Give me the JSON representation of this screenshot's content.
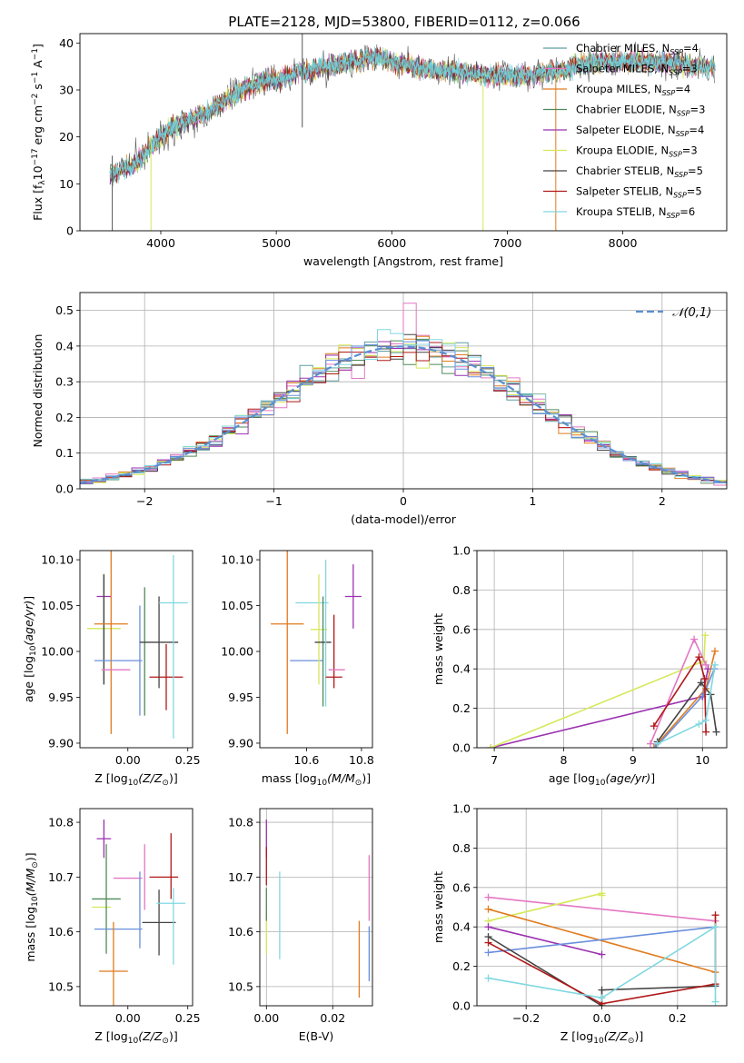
{
  "figure": {
    "title": "PLATE=2128, MJD=53800, FIBERID=0112, z=0.066"
  },
  "colors": {
    "Chabrier MILES": "#5f9ea0",
    "Salpeter MILES": "#e377c2",
    "Kroupa MILES": "#e07b1f",
    "Chabrier ELODIE": "#4e8a57",
    "Salpeter ELODIE": "#9b30b0",
    "Kroupa ELODIE": "#d6e85a",
    "Chabrier STELIB": "#444444",
    "Salpeter STELIB": "#b01818",
    "Kroupa STELIB": "#80d8e0",
    "spectrum_a": "#6cd0d8",
    "spectrum_b": "#555555",
    "gauss": "#5b8fd0",
    "blue": "#6a8fdc"
  },
  "chart_data": [
    {
      "id": "spectrum",
      "type": "line",
      "title": "PLATE=2128, MJD=53800, FIBERID=0112, z=0.066",
      "xlabel": "wavelength [Angstrom, rest frame]",
      "ylabel": "Flux [f_λ 10^-17 erg cm^-2 s^-1 A^-1]",
      "xlim": [
        3300,
        8900
      ],
      "ylim": [
        0,
        42
      ],
      "xticks": [
        4000,
        5000,
        6000,
        7000,
        8000
      ],
      "yticks": [
        0,
        10,
        20,
        30,
        40
      ],
      "grid": false,
      "legend_position": "top-right",
      "series": [
        {
          "name": "Chabrier MILES, N_SSP=4",
          "color": "#5f9ea0"
        },
        {
          "name": "Salpeter MILES, N_SSP=3",
          "color": "#e377c2"
        },
        {
          "name": "Kroupa MILES, N_SSP=4",
          "color": "#e07b1f"
        },
        {
          "name": "Chabrier ELODIE, N_SSP=3",
          "color": "#4e8a57"
        },
        {
          "name": "Salpeter ELODIE, N_SSP=4",
          "color": "#9b30b0"
        },
        {
          "name": "Kroupa ELODIE, N_SSP=3",
          "color": "#d6e85a"
        },
        {
          "name": "Chabrier STELIB, N_SSP=5",
          "color": "#444444"
        },
        {
          "name": "Salpeter STELIB, N_SSP=5",
          "color": "#b01818"
        },
        {
          "name": "Kroupa STELIB, N_SSP=6",
          "color": "#80d8e0"
        }
      ],
      "continuum_x": [
        3560,
        3650,
        3750,
        3850,
        3920,
        4000,
        4100,
        4200,
        4300,
        4400,
        4500,
        4600,
        4700,
        4800,
        4900,
        5000,
        5100,
        5200,
        5300,
        5400,
        5500,
        5600,
        5700,
        5800,
        5900,
        6000,
        6200,
        6400,
        6600,
        6800,
        7000,
        7200,
        7400,
        7600,
        7800,
        8000,
        8200,
        8400,
        8600,
        8800
      ],
      "continuum_y": [
        12,
        13,
        14,
        16,
        18,
        20,
        22,
        23,
        24,
        25,
        27,
        28,
        30,
        31,
        32,
        32,
        33,
        34,
        34,
        35,
        35,
        36,
        36,
        37,
        37,
        36,
        35,
        34,
        34,
        33,
        33,
        33,
        34,
        35,
        36,
        36,
        36,
        36,
        35,
        35
      ]
    },
    {
      "id": "residuals",
      "type": "histogram",
      "xlabel": "(data-model)/error",
      "ylabel": "Normed distribution",
      "xlim": [
        -2.5,
        2.5
      ],
      "ylim": [
        0,
        0.55
      ],
      "xticks": [
        -2,
        -1,
        0,
        1,
        2
      ],
      "yticks": [
        0.0,
        0.1,
        0.2,
        0.3,
        0.4,
        0.5
      ],
      "grid": true,
      "legend_position": "top-right",
      "reference_curve": "𝒩(0,1)",
      "bin_width": 0.1,
      "series_colors": [
        "#5f9ea0",
        "#e377c2",
        "#e07b1f",
        "#4e8a57",
        "#9b30b0",
        "#d6e85a",
        "#444444",
        "#b01818",
        "#80d8e0",
        "#6a8fdc"
      ]
    },
    {
      "id": "age-vs-Z",
      "type": "scatter",
      "xlabel": "Z [log10(Z/Z⊙)]",
      "ylabel": "age [log10(age/yr)]",
      "xlim": [
        -0.2,
        0.27
      ],
      "ylim": [
        9.895,
        10.11
      ],
      "xticks": [
        0.0,
        0.25
      ],
      "yticks": [
        9.9,
        9.95,
        10.0,
        10.05,
        10.1
      ],
      "grid": false,
      "points": [
        {
          "x": -0.1,
          "y": 10.06,
          "xerr": 0.03,
          "yerr": 0.0,
          "color": "#9b30b0"
        },
        {
          "x": -0.1,
          "y": 10.025,
          "xerr": 0.07,
          "yerr": 0.06,
          "color": "#d6e85a"
        },
        {
          "x": -0.1,
          "y": 10.024,
          "xerr": 0.0,
          "yerr": 0.06,
          "color": "#4e8a57"
        },
        {
          "x": -0.1,
          "y": 10.024,
          "xerr": 0.0,
          "yerr": 0.06,
          "color": "#444444"
        },
        {
          "x": -0.07,
          "y": 10.03,
          "xerr": 0.07,
          "yerr": 0.12,
          "color": "#e07b1f"
        },
        {
          "x": -0.05,
          "y": 9.98,
          "xerr": 0.06,
          "yerr": 0.0,
          "color": "#e377c2"
        },
        {
          "x": -0.04,
          "y": 9.99,
          "xerr": 0.1,
          "yerr": 0.0,
          "color": "#6a8fdc"
        },
        {
          "x": 0.05,
          "y": 9.99,
          "xerr": 0.0,
          "yerr": 0.06,
          "color": "#6a8fdc"
        },
        {
          "x": 0.07,
          "y": 10.0,
          "xerr": 0.0,
          "yerr": 0.07,
          "color": "#4e8a57"
        },
        {
          "x": 0.13,
          "y": 10.01,
          "xerr": 0.08,
          "yerr": 0.05,
          "color": "#444444"
        },
        {
          "x": 0.16,
          "y": 9.972,
          "xerr": 0.07,
          "yerr": 0.036,
          "color": "#b01818"
        },
        {
          "x": 0.19,
          "y": 10.053,
          "xerr": 0.06,
          "yerr": 0.0,
          "color": "#80d8e0"
        },
        {
          "x": 0.19,
          "y": 10.005,
          "xerr": 0.0,
          "yerr": 0.1,
          "color": "#80d8e0"
        }
      ]
    },
    {
      "id": "age-vs-mass",
      "type": "scatter",
      "xlabel": "mass [log10(M/M⊙)]",
      "ylabel": "",
      "xlim": [
        10.43,
        10.84
      ],
      "ylim": [
        9.895,
        10.11
      ],
      "xticks": [
        10.6,
        10.8
      ],
      "yticks": [
        9.9,
        9.95,
        10.0,
        10.05,
        10.1
      ],
      "grid": false,
      "points": [
        {
          "x": 10.53,
          "y": 10.03,
          "xerr": 0.06,
          "yerr": 0.12,
          "color": "#e07b1f"
        },
        {
          "x": 10.6,
          "y": 9.99,
          "xerr": 0.06,
          "yerr": 0.0,
          "color": "#6a8fdc"
        },
        {
          "x": 10.62,
          "y": 10.053,
          "xerr": 0.06,
          "yerr": 0.0,
          "color": "#80d8e0"
        },
        {
          "x": 10.645,
          "y": 10.024,
          "xerr": 0.03,
          "yerr": 0.06,
          "color": "#d6e85a"
        },
        {
          "x": 10.66,
          "y": 10.0,
          "xerr": 0.0,
          "yerr": 0.06,
          "color": "#4e8a57"
        },
        {
          "x": 10.66,
          "y": 10.01,
          "xerr": 0.03,
          "yerr": 0.0,
          "color": "#444444"
        },
        {
          "x": 10.67,
          "y": 10.02,
          "xerr": 0.0,
          "yerr": 0.08,
          "color": "#80d8e0"
        },
        {
          "x": 10.7,
          "y": 10.0,
          "xerr": 0.0,
          "yerr": 0.04,
          "color": "#b01818"
        },
        {
          "x": 10.7,
          "y": 9.972,
          "xerr": 0.03,
          "yerr": 0.0,
          "color": "#b01818"
        },
        {
          "x": 10.71,
          "y": 9.98,
          "xerr": 0.03,
          "yerr": 0.0,
          "color": "#e377c2"
        },
        {
          "x": 10.77,
          "y": 10.06,
          "xerr": 0.03,
          "yerr": 0.035,
          "color": "#9b30b0"
        }
      ]
    },
    {
      "id": "weight-vs-age",
      "type": "line",
      "xlabel": "age [log10(age/yr)]",
      "ylabel": "mass weight",
      "xlim": [
        6.75,
        10.35
      ],
      "ylim": [
        0.0,
        1.0
      ],
      "xticks": [
        7,
        8,
        9,
        10
      ],
      "yticks": [
        0.0,
        0.2,
        0.4,
        0.6,
        0.8,
        1.0
      ],
      "grid": true,
      "series": [
        {
          "color": "#9b30b0",
          "x": [
            6.95,
            10.0,
            10.08
          ],
          "y": [
            0.0,
            0.26,
            0.4
          ]
        },
        {
          "color": "#d6e85a",
          "x": [
            6.95,
            10.02,
            10.04
          ],
          "y": [
            0.0,
            0.44,
            0.57
          ]
        },
        {
          "color": "#e377c2",
          "x": [
            9.25,
            9.88,
            10.05
          ],
          "y": [
            0.02,
            0.55,
            0.42
          ]
        },
        {
          "color": "#e07b1f",
          "x": [
            9.3,
            10.05,
            10.18
          ],
          "y": [
            0.0,
            0.3,
            0.49
          ]
        },
        {
          "color": "#6a8fdc",
          "x": [
            9.32,
            10.02,
            10.17
          ],
          "y": [
            0.0,
            0.27,
            0.4
          ]
        },
        {
          "color": "#444444",
          "x": [
            9.35,
            9.98,
            10.12,
            10.2
          ],
          "y": [
            0.03,
            0.33,
            0.27,
            0.08
          ]
        },
        {
          "color": "#b01818",
          "x": [
            9.3,
            9.95,
            10.03,
            10.05
          ],
          "y": [
            0.11,
            0.46,
            0.35,
            0.08
          ]
        },
        {
          "color": "#80d8e0",
          "x": [
            9.35,
            9.95,
            10.05,
            10.18
          ],
          "y": [
            0.02,
            0.12,
            0.14,
            0.42
          ]
        }
      ]
    },
    {
      "id": "mass-vs-Z",
      "type": "scatter",
      "xlabel": "Z [log10(Z/Z⊙)]",
      "ylabel": "mass [log10(M/M⊙)]",
      "xlim": [
        -0.2,
        0.27
      ],
      "ylim": [
        10.465,
        10.825
      ],
      "xticks": [
        0.0,
        0.25
      ],
      "yticks": [
        10.5,
        10.6,
        10.7,
        10.8
      ],
      "grid": false,
      "points": [
        {
          "x": -0.1,
          "y": 10.77,
          "xerr": 0.03,
          "yerr": 0.035,
          "color": "#9b30b0"
        },
        {
          "x": -0.11,
          "y": 10.645,
          "xerr": 0.04,
          "yerr": 0.0,
          "color": "#d6e85a"
        },
        {
          "x": -0.09,
          "y": 10.66,
          "xerr": 0.06,
          "yerr": 0.1,
          "color": "#4e8a57"
        },
        {
          "x": -0.04,
          "y": 10.605,
          "xerr": 0.1,
          "yerr": 0.0,
          "color": "#6a8fdc"
        },
        {
          "x": -0.06,
          "y": 10.528,
          "xerr": 0.06,
          "yerr": 0.09,
          "color": "#e07b1f"
        },
        {
          "x": 0.0,
          "y": 10.698,
          "xerr": 0.06,
          "yerr": 0.0,
          "color": "#e377c2"
        },
        {
          "x": 0.05,
          "y": 10.64,
          "xerr": 0.0,
          "yerr": 0.07,
          "color": "#6a8fdc"
        },
        {
          "x": 0.07,
          "y": 10.7,
          "xerr": 0.0,
          "yerr": 0.06,
          "color": "#e377c2"
        },
        {
          "x": 0.13,
          "y": 10.617,
          "xerr": 0.07,
          "yerr": 0.06,
          "color": "#444444"
        },
        {
          "x": 0.15,
          "y": 10.7,
          "xerr": 0.06,
          "yerr": 0.0,
          "color": "#b01818"
        },
        {
          "x": 0.18,
          "y": 10.72,
          "xerr": 0.0,
          "yerr": 0.06,
          "color": "#b01818"
        },
        {
          "x": 0.18,
          "y": 10.652,
          "xerr": 0.06,
          "yerr": 0.0,
          "color": "#80d8e0"
        },
        {
          "x": 0.19,
          "y": 10.61,
          "xerr": 0.0,
          "yerr": 0.07,
          "color": "#80d8e0"
        }
      ]
    },
    {
      "id": "mass-vs-EBV",
      "type": "scatter",
      "xlabel": "E(B-V)",
      "ylabel": "",
      "xlim": [
        -0.002,
        0.032
      ],
      "ylim": [
        10.465,
        10.825
      ],
      "xticks": [
        0.0,
        0.02
      ],
      "xtick_labels": [
        "0.00",
        "0.02"
      ],
      "yticks": [
        10.5,
        10.6,
        10.7,
        10.8
      ],
      "grid": true,
      "points": [
        {
          "x": 0.0,
          "y": 10.77,
          "xerr": 0.0,
          "yerr": 0.035,
          "color": "#9b30b0"
        },
        {
          "x": 0.0,
          "y": 10.72,
          "xerr": 0.0,
          "yerr": 0.035,
          "color": "#b01818"
        },
        {
          "x": 0.0,
          "y": 10.6,
          "xerr": 0.0,
          "yerr": 0.04,
          "color": "#d6e85a"
        },
        {
          "x": 0.0,
          "y": 10.65,
          "xerr": 0.0,
          "yerr": 0.03,
          "color": "#4e8a57"
        },
        {
          "x": 0.004,
          "y": 10.63,
          "xerr": 0.0,
          "yerr": 0.08,
          "color": "#80d8e0"
        },
        {
          "x": 0.028,
          "y": 10.55,
          "xerr": 0.0,
          "yerr": 0.07,
          "color": "#e07b1f"
        },
        {
          "x": 0.031,
          "y": 10.68,
          "xerr": 0.0,
          "yerr": 0.06,
          "color": "#e377c2"
        },
        {
          "x": 0.031,
          "y": 10.56,
          "xerr": 0.0,
          "yerr": 0.05,
          "color": "#6a8fdc"
        }
      ]
    },
    {
      "id": "weight-vs-Z",
      "type": "line",
      "xlabel": "Z [log10(Z/Z⊙)]",
      "ylabel": "mass weight",
      "xlim": [
        -0.33,
        0.33
      ],
      "ylim": [
        0.0,
        1.0
      ],
      "xticks": [
        -0.2,
        0.0,
        0.2
      ],
      "xtick_labels": [
        "−0.2",
        "0.0",
        "0.2"
      ],
      "yticks": [
        0.0,
        0.2,
        0.4,
        0.6,
        0.8,
        1.0
      ],
      "grid": true,
      "series": [
        {
          "color": "#e377c2",
          "x": [
            -0.3,
            0.3
          ],
          "y": [
            0.55,
            0.43
          ]
        },
        {
          "color": "#d6e85a",
          "x": [
            -0.3,
            0.0,
            0.0
          ],
          "y": [
            0.43,
            0.57,
            0.56
          ]
        },
        {
          "color": "#e07b1f",
          "x": [
            -0.3,
            0.3
          ],
          "y": [
            0.49,
            0.17
          ]
        },
        {
          "color": "#9b30b0",
          "x": [
            -0.3,
            0.0
          ],
          "y": [
            0.4,
            0.26
          ]
        },
        {
          "color": "#6a8fdc",
          "x": [
            -0.3,
            0.3
          ],
          "y": [
            0.27,
            0.4
          ]
        },
        {
          "color": "#444444",
          "x": [
            -0.3,
            0.0,
            0.0,
            0.3
          ],
          "y": [
            0.35,
            0.0,
            0.08,
            0.1
          ]
        },
        {
          "color": "#b01818",
          "x": [
            -0.3,
            0.0,
            0.3,
            0.3
          ],
          "y": [
            0.32,
            0.01,
            0.11,
            0.46
          ]
        },
        {
          "color": "#80d8e0",
          "x": [
            -0.3,
            0.0,
            0.3,
            0.3
          ],
          "y": [
            0.14,
            0.04,
            0.4,
            0.02
          ]
        }
      ]
    }
  ]
}
